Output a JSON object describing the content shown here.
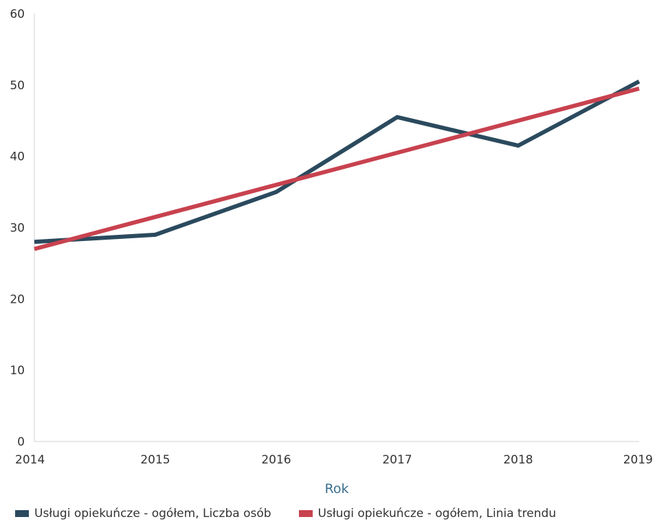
{
  "chart_data": {
    "type": "line",
    "x": [
      2014,
      2015,
      2016,
      2017,
      2018,
      2019
    ],
    "xlabel": "Rok",
    "ylabel": "",
    "ylim": [
      0,
      60
    ],
    "yticks": [
      0,
      10,
      20,
      30,
      40,
      50,
      60
    ],
    "xticks": [
      "2014",
      "2015",
      "2016",
      "2017",
      "2018",
      "2019"
    ],
    "grid": false,
    "legend_position": "bottom",
    "series": [
      {
        "name": "Usługi opiekuńcze - ogółem, Liczba osób",
        "values": [
          28,
          29,
          35,
          45.5,
          41.5,
          50.5
        ],
        "color": "#2b4a5e"
      },
      {
        "name": "Usługi opiekuńcze - ogółem, Linia trendu",
        "values": [
          27,
          31.5,
          36,
          40.5,
          45,
          49.5
        ],
        "color": "#c8424f"
      }
    ],
    "xlabel_color": "#3b6e8f"
  }
}
